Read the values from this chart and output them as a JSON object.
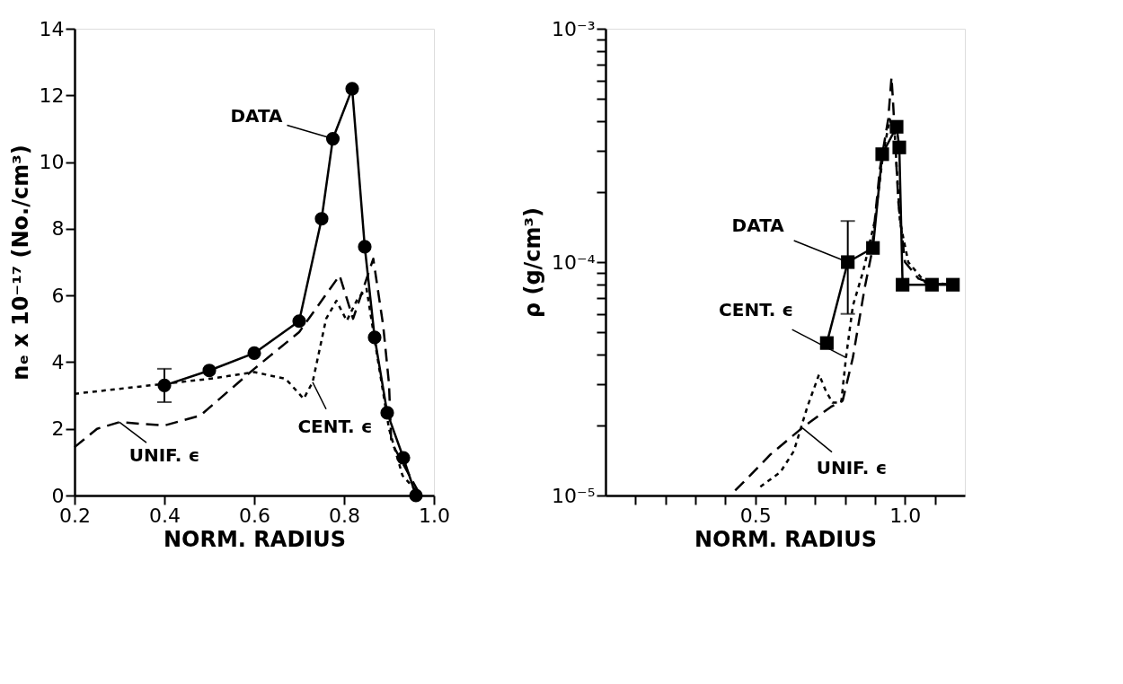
{
  "chart_data": [
    {
      "type": "line",
      "xlabel": "NORM. RADIUS",
      "ylabel": "nₑ x 10⁻¹⁷ (No./cm³)",
      "xlim": [
        0.2,
        1.0
      ],
      "ylim": [
        0,
        14
      ],
      "xticks": [
        0.2,
        0.4,
        0.6,
        0.8,
        {
          "value": 1.0,
          "label": "1.0"
        }
      ],
      "yticks": [
        0,
        2,
        4,
        6,
        8,
        10,
        12,
        14
      ],
      "grid": false,
      "series": [
        {
          "color": "#000000",
          "marker": "circle",
          "line_style": "solid",
          "x": [
            0.4,
            0.5,
            0.6,
            0.7,
            0.75,
            0.775,
            0.818,
            0.846,
            0.868,
            0.896,
            0.932,
            0.96
          ],
          "values": [
            3.3,
            3.75,
            4.27,
            5.23,
            8.3,
            10.7,
            12.2,
            7.46,
            4.74,
            2.48,
            1.13,
            0
          ],
          "errors": [
            [
              2.8,
              3.8
            ],
            null,
            null,
            null,
            null,
            null,
            null,
            null,
            null,
            null,
            null,
            null
          ]
        },
        {
          "color": "#000000",
          "marker": "none",
          "line_style": "dashed",
          "x": [
            0.2,
            0.25,
            0.3,
            0.4,
            0.48,
            0.6,
            0.7,
            0.79,
            0.82,
            0.865,
            0.887,
            0.9,
            0.905,
            0.97
          ],
          "values": [
            1.45,
            2.0,
            2.2,
            2.1,
            2.4,
            3.8,
            4.9,
            6.6,
            5.3,
            7.1,
            5.1,
            3.35,
            1.6,
            0
          ]
        },
        {
          "color": "#000000",
          "marker": "none",
          "line_style": "dotted",
          "x": [
            0.2,
            0.4,
            0.5,
            0.6,
            0.67,
            0.71,
            0.73,
            0.76,
            0.783,
            0.806,
            0.83,
            0.85,
            0.87,
            0.9,
            0.93,
            0.97
          ],
          "values": [
            3.05,
            3.35,
            3.5,
            3.7,
            3.5,
            2.9,
            3.4,
            5.3,
            5.84,
            5.24,
            5.9,
            6.2,
            4.5,
            2.0,
            0.6,
            0
          ]
        }
      ],
      "annotations": [
        {
          "text": "DATA",
          "x": 0.775,
          "y": 10.7
        },
        {
          "text": "CENT. ϵ",
          "x": 0.73,
          "y": 3.4
        },
        {
          "text": "UNIF. ϵ",
          "x": 0.3,
          "y": 2.2
        }
      ]
    },
    {
      "type": "line",
      "xlabel": "NORM. RADIUS",
      "ylabel": "ρ (g/cm³)",
      "log": "y",
      "xlim": [
        0.0,
        1.2
      ],
      "ylim": [
        1e-05,
        0.001
      ],
      "xticks": [
        {
          "value": 0.1,
          "label": null
        },
        {
          "value": 0.2,
          "label": null
        },
        {
          "value": 0.3,
          "label": null
        },
        {
          "value": 0.4,
          "label": null
        },
        0.5,
        {
          "value": 0.6,
          "label": null
        },
        {
          "value": 0.7,
          "label": null
        },
        {
          "value": 0.8,
          "label": null
        },
        {
          "value": 0.9,
          "label": null
        },
        {
          "value": 1.0,
          "label": "1.0"
        },
        {
          "value": 1.1,
          "label": null
        }
      ],
      "yticks": [
        {
          "value": 1e-05,
          "label": "10⁻⁵"
        },
        {
          "value": 2e-05,
          "label": null
        },
        {
          "value": 3e-05,
          "label": null
        },
        {
          "value": 4e-05,
          "label": null
        },
        {
          "value": 5e-05,
          "label": null
        },
        {
          "value": 6e-05,
          "label": null
        },
        {
          "value": 7e-05,
          "label": null
        },
        {
          "value": 8e-05,
          "label": null
        },
        {
          "value": 9e-05,
          "label": null
        },
        {
          "value": 0.0001,
          "label": "10⁻⁴"
        },
        {
          "value": 0.0002,
          "label": null
        },
        {
          "value": 0.0003,
          "label": null
        },
        {
          "value": 0.0004,
          "label": null
        },
        {
          "value": 0.0005,
          "label": null
        },
        {
          "value": 0.0006,
          "label": null
        },
        {
          "value": 0.0007,
          "label": null
        },
        {
          "value": 0.0008,
          "label": null
        },
        {
          "value": 0.0009,
          "label": null
        },
        {
          "value": 0.001,
          "label": "10⁻³"
        }
      ],
      "grid": false,
      "series": [
        {
          "color": "#000000",
          "marker": "square",
          "line_style": "solid",
          "x": [
            0.739,
            0.809,
            0.893,
            0.924,
            0.972,
            0.981,
            0.992,
            1.09,
            1.16
          ],
          "values": [
            4.5e-05,
            0.0001,
            0.000115,
            0.00029,
            0.00038,
            0.00031,
            8e-05,
            8e-05,
            8e-05
          ],
          "errors": [
            null,
            [
              6e-05,
              0.00015
            ],
            null,
            null,
            null,
            null,
            null,
            null,
            null
          ]
        },
        {
          "color": "#000000",
          "marker": "none",
          "line_style": "dashed",
          "x": [
            0.433,
            0.483,
            0.551,
            0.657,
            0.753,
            0.792,
            0.826,
            0.865,
            0.888,
            0.916,
            0.944,
            0.955,
            0.96,
            0.978,
            1.0,
            1.045,
            1.09,
            1.16
          ],
          "values": [
            1.05e-05,
            1.22e-05,
            1.5e-05,
            1.95e-05,
            2.4e-05,
            2.55e-05,
            3.9e-05,
            7.7e-05,
            0.000108,
            0.00025,
            0.00041,
            0.00062,
            0.00049,
            0.00018,
            0.0001,
            8.5e-05,
            8.1e-05,
            8e-05
          ]
        },
        {
          "color": "#000000",
          "marker": "none",
          "line_style": "dotted",
          "x": [
            0.517,
            0.584,
            0.629,
            0.674,
            0.713,
            0.736,
            0.758,
            0.787,
            0.803,
            0.826,
            0.86,
            0.899,
            0.927,
            0.949,
            0.966,
            0.983,
            1.011,
            1.067,
            1.16
          ],
          "values": [
            1.09e-05,
            1.26e-05,
            1.55e-05,
            2.4e-05,
            3.3e-05,
            2.8e-05,
            2.5e-05,
            2.5e-05,
            3.9e-05,
            6.5e-05,
            9.1e-05,
            0.00015,
            0.00029,
            0.00041,
            0.00035,
            0.00015,
            0.0001,
            8.2e-05,
            8e-05
          ]
        }
      ],
      "annotations": [
        {
          "text": "DATA",
          "x": 0.809,
          "y": 0.0001
        },
        {
          "text": "CENT. ϵ",
          "x": 0.803,
          "y": 3.9e-05
        },
        {
          "text": "UNIF. ϵ",
          "x": 0.657,
          "y": 1.95e-05
        }
      ]
    }
  ]
}
